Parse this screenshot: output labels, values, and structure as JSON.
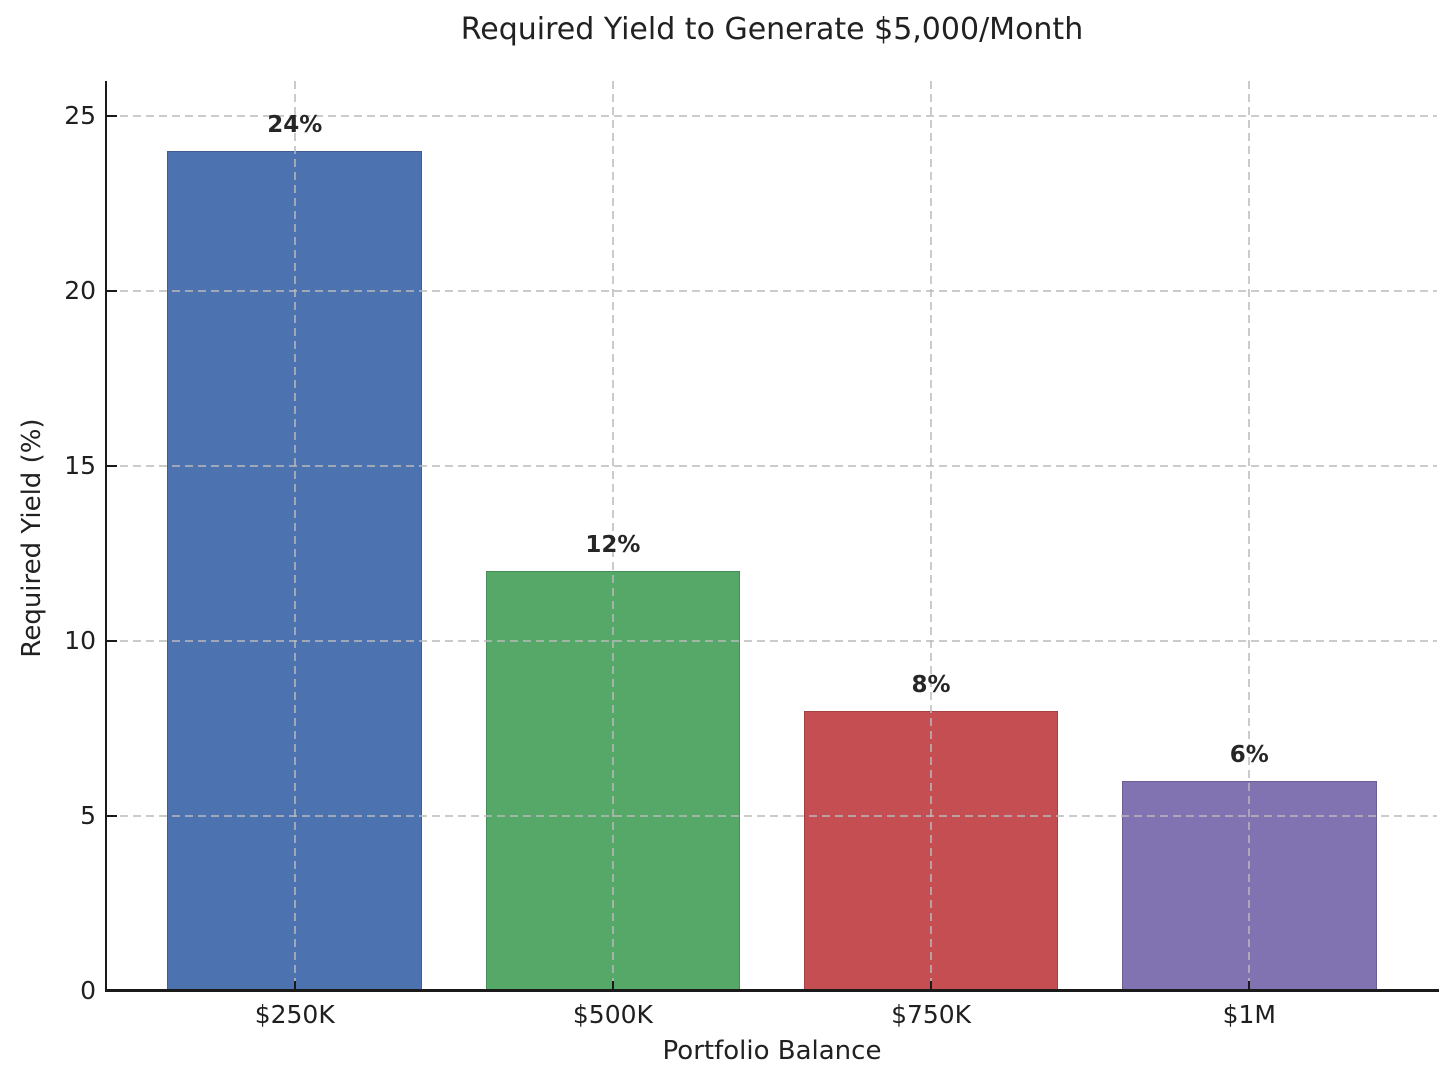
{
  "title": "Required Yield to Generate $5,000/Month",
  "chart_data": {
    "type": "bar",
    "title": "Required Yield to Generate $5,000/Month",
    "categories": [
      "$250K",
      "$500K",
      "$750K",
      "$1M"
    ],
    "values": [
      24,
      12,
      8,
      6
    ],
    "value_labels": [
      "24%",
      "12%",
      "8%",
      "6%"
    ],
    "bar_colors": [
      "#4C72B0",
      "#55A868",
      "#C44E52",
      "#8172B2"
    ],
    "xlabel": "Portfolio Balance",
    "ylabel": "Required Yield (%)",
    "ylim": [
      0,
      26
    ],
    "yticks": [
      0,
      5,
      10,
      15,
      20,
      25
    ],
    "ytick_labels": [
      "0",
      "5",
      "10",
      "15",
      "20",
      "25"
    ],
    "grid": "dashed gridlines on both axes, drawn above bars",
    "legend": "none"
  },
  "colors": {
    "axis": "#1a1a1a",
    "grid": "#bababa",
    "text": "#1f1f1f",
    "background": "#ffffff"
  }
}
